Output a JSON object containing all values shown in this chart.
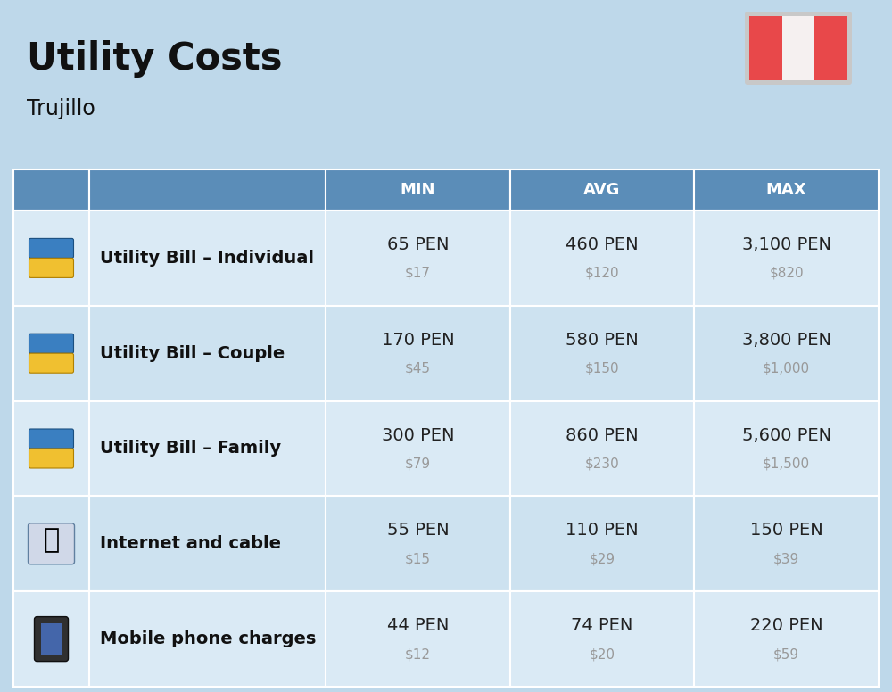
{
  "title": "Utility Costs",
  "subtitle": "Trujillo",
  "background_color": "#bed8ea",
  "header_bg_color": "#5b8db8",
  "header_text_color": "#ffffff",
  "row_bg_color_even": "#cde2f0",
  "row_bg_color_odd": "#daeaf5",
  "cell_border_color": "#ffffff",
  "label_color": "#111111",
  "value_color": "#222222",
  "sub_value_color": "#999999",
  "rows": [
    {
      "label": "Utility Bill – Individual",
      "min_pen": "65 PEN",
      "min_usd": "$17",
      "avg_pen": "460 PEN",
      "avg_usd": "$120",
      "max_pen": "3,100 PEN",
      "max_usd": "$820"
    },
    {
      "label": "Utility Bill – Couple",
      "min_pen": "170 PEN",
      "min_usd": "$45",
      "avg_pen": "580 PEN",
      "avg_usd": "$150",
      "max_pen": "3,800 PEN",
      "max_usd": "$1,000"
    },
    {
      "label": "Utility Bill – Family",
      "min_pen": "300 PEN",
      "min_usd": "$79",
      "avg_pen": "860 PEN",
      "avg_usd": "$230",
      "max_pen": "5,600 PEN",
      "max_usd": "$1,500"
    },
    {
      "label": "Internet and cable",
      "min_pen": "55 PEN",
      "min_usd": "$15",
      "avg_pen": "110 PEN",
      "avg_usd": "$29",
      "max_pen": "150 PEN",
      "max_usd": "$39"
    },
    {
      "label": "Mobile phone charges",
      "min_pen": "44 PEN",
      "min_usd": "$12",
      "avg_pen": "74 PEN",
      "avg_usd": "$20",
      "max_pen": "220 PEN",
      "max_usd": "$59"
    }
  ],
  "flag_red": "#e8484a",
  "flag_off_white": "#f5f0f0",
  "title_fontsize": 30,
  "subtitle_fontsize": 17,
  "header_fontsize": 13,
  "label_fontsize": 14,
  "value_fontsize": 14,
  "sub_value_fontsize": 11
}
